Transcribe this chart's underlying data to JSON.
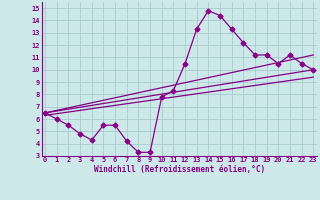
{
  "xlabel": "Windchill (Refroidissement éolien,°C)",
  "ylabel": "",
  "xticks": [
    0,
    1,
    2,
    3,
    4,
    5,
    6,
    7,
    8,
    9,
    10,
    11,
    12,
    13,
    14,
    15,
    16,
    17,
    18,
    19,
    20,
    21,
    22,
    23
  ],
  "yticks": [
    3,
    4,
    5,
    6,
    7,
    8,
    9,
    10,
    11,
    12,
    13,
    14,
    15
  ],
  "bg_color": "#cce8e8",
  "grid_color": "#aacccc",
  "line_color": "#880088",
  "line1_x": [
    0,
    1,
    2,
    3,
    4,
    5,
    6,
    7,
    8,
    9,
    10,
    11,
    12,
    13,
    14,
    15,
    16,
    17,
    18,
    19,
    20,
    21,
    22,
    23
  ],
  "line1_y": [
    6.5,
    6.0,
    5.5,
    4.8,
    4.3,
    5.5,
    5.5,
    4.2,
    3.3,
    3.3,
    7.8,
    8.3,
    10.5,
    13.3,
    14.8,
    14.4,
    13.3,
    12.2,
    11.2,
    11.2,
    10.5,
    11.2,
    10.5,
    10.0
  ],
  "line2_x": [
    0,
    23
  ],
  "line2_y": [
    6.5,
    10.0
  ],
  "line3_x": [
    0,
    23
  ],
  "line3_y": [
    6.3,
    9.4
  ],
  "line4_x": [
    0,
    23
  ],
  "line4_y": [
    6.5,
    11.2
  ],
  "marker": "D",
  "markersize": 2.5,
  "linewidth": 0.9
}
